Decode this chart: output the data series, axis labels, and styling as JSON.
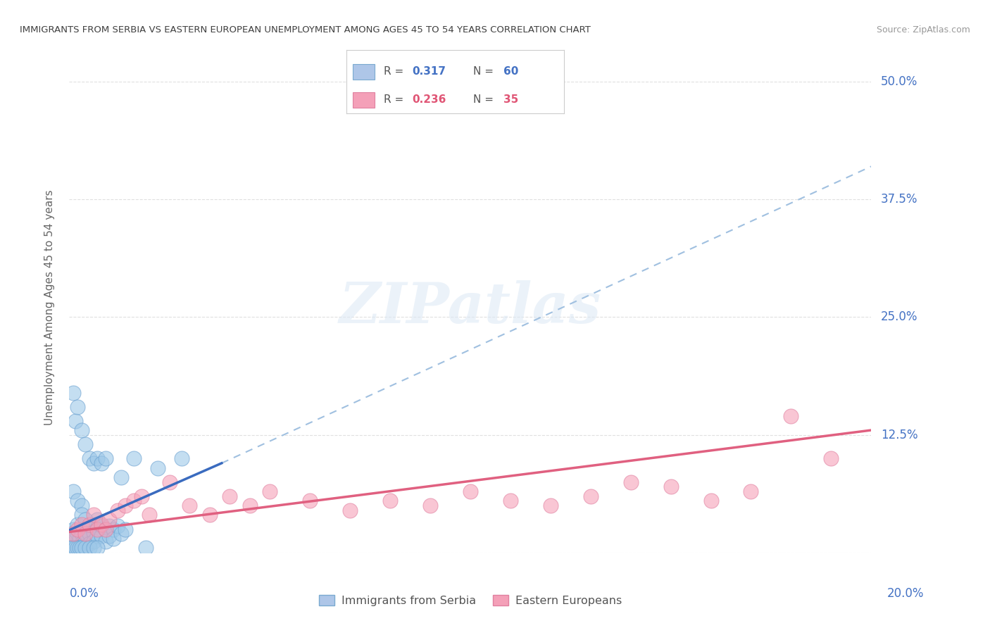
{
  "title": "IMMIGRANTS FROM SERBIA VS EASTERN EUROPEAN UNEMPLOYMENT AMONG AGES 45 TO 54 YEARS CORRELATION CHART",
  "source": "Source: ZipAtlas.com",
  "ylabel": "Unemployment Among Ages 45 to 54 years",
  "xlim": [
    0.0,
    0.2
  ],
  "ylim": [
    0.0,
    0.52
  ],
  "yticks": [
    0.0,
    0.125,
    0.25,
    0.375,
    0.5
  ],
  "ytick_labels": [
    "",
    "12.5%",
    "25.0%",
    "37.5%",
    "50.0%"
  ],
  "xtick_positions": [
    0.0,
    0.04,
    0.08,
    0.12,
    0.16,
    0.2
  ],
  "blue_scatter_x": [
    0.0005,
    0.001,
    0.0015,
    0.002,
    0.002,
    0.0025,
    0.003,
    0.003,
    0.003,
    0.004,
    0.004,
    0.005,
    0.005,
    0.005,
    0.006,
    0.006,
    0.006,
    0.007,
    0.007,
    0.008,
    0.008,
    0.009,
    0.009,
    0.01,
    0.01,
    0.011,
    0.011,
    0.012,
    0.013,
    0.014,
    0.0005,
    0.001,
    0.0015,
    0.002,
    0.0025,
    0.003,
    0.004,
    0.005,
    0.006,
    0.007,
    0.001,
    0.0015,
    0.002,
    0.003,
    0.004,
    0.005,
    0.006,
    0.007,
    0.008,
    0.009,
    0.001,
    0.002,
    0.003,
    0.003,
    0.004,
    0.016,
    0.019,
    0.013,
    0.022,
    0.028
  ],
  "blue_scatter_y": [
    0.02,
    0.025,
    0.02,
    0.03,
    0.02,
    0.015,
    0.025,
    0.02,
    0.01,
    0.022,
    0.015,
    0.028,
    0.02,
    0.01,
    0.03,
    0.022,
    0.012,
    0.035,
    0.018,
    0.028,
    0.018,
    0.025,
    0.012,
    0.028,
    0.018,
    0.025,
    0.015,
    0.028,
    0.02,
    0.025,
    0.005,
    0.005,
    0.005,
    0.005,
    0.005,
    0.005,
    0.005,
    0.005,
    0.005,
    0.005,
    0.17,
    0.14,
    0.155,
    0.13,
    0.115,
    0.1,
    0.095,
    0.1,
    0.095,
    0.1,
    0.065,
    0.055,
    0.05,
    0.04,
    0.035,
    0.1,
    0.005,
    0.08,
    0.09,
    0.1
  ],
  "pink_scatter_x": [
    0.001,
    0.002,
    0.003,
    0.004,
    0.005,
    0.006,
    0.007,
    0.008,
    0.009,
    0.01,
    0.012,
    0.014,
    0.016,
    0.018,
    0.02,
    0.025,
    0.03,
    0.035,
    0.04,
    0.045,
    0.05,
    0.06,
    0.07,
    0.08,
    0.09,
    0.1,
    0.11,
    0.12,
    0.13,
    0.14,
    0.15,
    0.16,
    0.17,
    0.18,
    0.19
  ],
  "pink_scatter_y": [
    0.02,
    0.025,
    0.03,
    0.02,
    0.03,
    0.04,
    0.025,
    0.03,
    0.025,
    0.035,
    0.045,
    0.05,
    0.055,
    0.06,
    0.04,
    0.075,
    0.05,
    0.04,
    0.06,
    0.05,
    0.065,
    0.055,
    0.045,
    0.055,
    0.05,
    0.065,
    0.055,
    0.05,
    0.06,
    0.075,
    0.07,
    0.055,
    0.065,
    0.145,
    0.1
  ],
  "blue_solid_line": {
    "x0": 0.0,
    "y0": 0.024,
    "x1": 0.038,
    "y1": 0.095
  },
  "blue_dashed_line": {
    "x0": 0.038,
    "y0": 0.095,
    "x1": 0.2,
    "y1": 0.41
  },
  "pink_solid_line": {
    "x0": 0.0,
    "y0": 0.022,
    "x1": 0.2,
    "y1": 0.13
  },
  "background_color": "#ffffff",
  "grid_color": "#e0e0e0",
  "title_color": "#404040",
  "blue_scatter_color": "#9ec8e8",
  "blue_scatter_alpha": 0.6,
  "pink_scatter_color": "#f5a0b8",
  "pink_scatter_alpha": 0.6,
  "blue_line_color": "#3a6bbf",
  "blue_dashed_color": "#a0c0e0",
  "pink_line_color": "#e06080",
  "right_label_color": "#4472c4",
  "ylabel_color": "#666666",
  "legend_entries": [
    {
      "label": "Immigrants from Serbia",
      "patch_color": "#aec6e8",
      "patch_edge": "#7aaad0",
      "R": "0.317",
      "N": "60",
      "val_color": "#4472c4"
    },
    {
      "label": "Eastern Europeans",
      "patch_color": "#f4a0b8",
      "patch_edge": "#e080a0",
      "R": "0.236",
      "N": "35",
      "val_color": "#e05575"
    }
  ]
}
